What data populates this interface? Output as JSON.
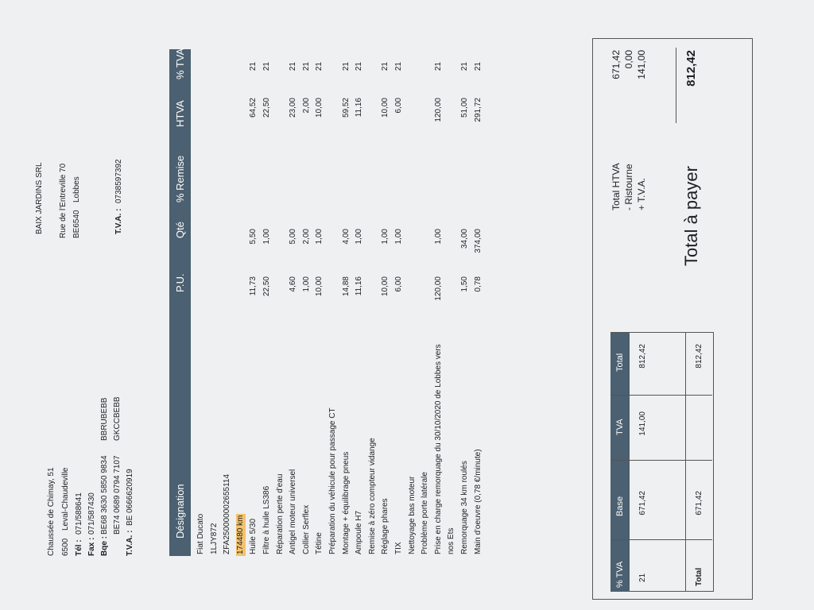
{
  "seller": {
    "lines": [
      "Chaussée de Chimay, 51",
      "6500",
      "Leval-Chaudeville",
      "Tél :",
      "071/588641",
      "Fax :",
      "071/587430",
      "Bqe :",
      "BE68 3630 5850 9834",
      "BE74 0689 0794 7107",
      "BBRUBEBB",
      "GKCCBEBB",
      "T.V.A. :",
      "BE 0666620919"
    ]
  },
  "client": {
    "name": "BAIX JARDINS SRL",
    "street": "Rue de l'Entreville 70",
    "postcode": "BE6540",
    "city": "Lobbes",
    "vat_label": "T.V.A. :",
    "vat": "0738597392"
  },
  "table": {
    "columns": [
      "Désignation",
      "P.U.",
      "Qté",
      "% Remise",
      "HTVA",
      "% TVA"
    ],
    "rows": [
      {
        "designation": "Fiat Ducato"
      },
      {
        "designation": "1LJY872"
      },
      {
        "designation": "ZFA250000002655114"
      },
      {
        "designation": "174480 km"
      },
      {
        "designation": "Huile 5/30",
        "pu": "11,73",
        "qty": "5,50",
        "htva": "64,52",
        "tva": "21"
      },
      {
        "designation": "Filtre à huile LS386",
        "pu": "22,50",
        "qty": "1,00",
        "htva": "22,50",
        "tva": "21"
      },
      {
        "designation": "Réparation perte d'eau"
      },
      {
        "designation": "Antigel moteur universel",
        "pu": "4,60",
        "qty": "5,00",
        "htva": "23,00",
        "tva": "21"
      },
      {
        "designation": "Collier Serflex",
        "pu": "1,00",
        "qty": "2,00",
        "htva": "2,00",
        "tva": "21"
      },
      {
        "designation": "Tétine",
        "pu": "10,00",
        "qty": "1,00",
        "htva": "10,00",
        "tva": "21"
      },
      {
        "designation": "Préparation du véhicule pour passage CT"
      },
      {
        "designation": "Montage + équilibrage pneus",
        "pu": "14,88",
        "qty": "4,00",
        "htva": "59,52",
        "tva": "21"
      },
      {
        "designation": "Ampoule H7",
        "pu": "11,16",
        "qty": "1,00",
        "htva": "11,16",
        "tva": "21"
      },
      {
        "designation": "Remise à zéro compteur vidange"
      },
      {
        "designation": "Réglage phares",
        "pu": "10,00",
        "qty": "1,00",
        "htva": "10,00",
        "tva": "21"
      },
      {
        "designation": "TIX",
        "pu": "6,00",
        "qty": "1,00",
        "htva": "6,00",
        "tva": "21"
      },
      {
        "designation": "Nettoyage bas moteur"
      },
      {
        "designation": "Problème porte latérale"
      },
      {
        "designation": "Prise en charge remorquage du 30/10/2020 de Lobbes vers",
        "pu": "120,00",
        "qty": "1,00",
        "htva": "120,00",
        "tva": "21"
      },
      {
        "designation": "nos Ets"
      },
      {
        "designation": "Remorquage 34 km roulés",
        "pu": "1,50",
        "qty": "34,00",
        "htva": "51,00",
        "tva": "21"
      },
      {
        "designation": "Main d'oeuvre (0,78 €/minute)",
        "pu": "0,78",
        "qty": "374,00",
        "htva": "291,72",
        "tva": "21"
      }
    ]
  },
  "vat_table": {
    "columns": [
      "% TVA",
      "Base",
      "TVA",
      "Total"
    ],
    "row": [
      "21",
      "671,42",
      "141,00",
      "812,42"
    ],
    "total": {
      "label": "Total",
      "base": "671,42",
      "total": "812,42"
    }
  },
  "totals": {
    "rows": [
      {
        "label": "Total HTVA",
        "value": "671,42"
      },
      {
        "label": "- Ristourne",
        "value": "0,00"
      },
      {
        "label": "+ T.V.A.",
        "value": "141,00"
      }
    ],
    "pay_label": "Total à payer",
    "pay_value": "812,42"
  }
}
